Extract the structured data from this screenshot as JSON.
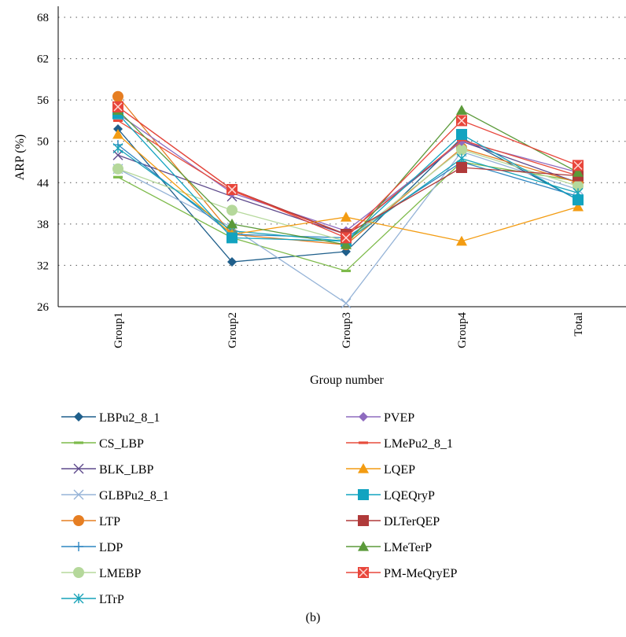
{
  "chart_data": {
    "type": "line",
    "categories": [
      "Group1",
      "Group2",
      "Group3",
      "Group4",
      "Total"
    ],
    "xlabel": "Group number",
    "ylabel": "ARP (%)",
    "ylim": [
      26,
      68
    ],
    "yticks": [
      26,
      32,
      38,
      44,
      50,
      56,
      62,
      68
    ],
    "grid": "horizontal dotted",
    "legend_position": "bottom, two columns",
    "series": [
      {
        "name": "LBPu2_8_1",
        "color": "#1f5f8b",
        "marker": "diamond",
        "values": [
          51.8,
          32.5,
          34.0,
          50.5,
          41.5
        ]
      },
      {
        "name": "CS_LBP",
        "color": "#7dba4a",
        "marker": "dash",
        "values": [
          44.8,
          36.0,
          31.2,
          47.0,
          44.2
        ]
      },
      {
        "name": "BLK_LBP",
        "color": "#5e4a8c",
        "marker": "x",
        "values": [
          48.0,
          42.0,
          36.5,
          50.0,
          44.0
        ]
      },
      {
        "name": "GLBPu2_8_1",
        "color": "#95b3d7",
        "marker": "x",
        "values": [
          46.0,
          37.5,
          26.5,
          48.5,
          43.0
        ]
      },
      {
        "name": "LTP",
        "color": "#e67e22",
        "marker": "circle",
        "values": [
          56.5,
          36.5,
          35.0,
          49.0,
          44.0
        ]
      },
      {
        "name": "LDP",
        "color": "#2e86c1",
        "marker": "plus",
        "values": [
          49.5,
          36.5,
          36.0,
          47.0,
          42.0
        ]
      },
      {
        "name": "LMEBP",
        "color": "#b5d89b",
        "marker": "circle",
        "values": [
          46.0,
          40.0,
          35.5,
          48.8,
          43.5
        ]
      },
      {
        "name": "LTrP",
        "color": "#17a2b8",
        "marker": "asterisk",
        "values": [
          49.0,
          37.0,
          35.5,
          47.5,
          42.5
        ]
      },
      {
        "name": "PVEP",
        "color": "#8e6bbf",
        "marker": "diamond",
        "values": [
          54.0,
          42.5,
          37.0,
          50.0,
          45.5
        ]
      },
      {
        "name": "LMePu2_8_1",
        "color": "#e74c3c",
        "marker": "dash",
        "values": [
          53.0,
          42.8,
          36.5,
          50.2,
          45.0
        ]
      },
      {
        "name": "LQEP",
        "color": "#f39c12",
        "marker": "triangle",
        "values": [
          51.0,
          36.5,
          39.0,
          35.5,
          40.5
        ]
      },
      {
        "name": "LQEQryP",
        "color": "#12a3c0",
        "marker": "square",
        "values": [
          54.0,
          36.0,
          35.5,
          51.0,
          41.5
        ]
      },
      {
        "name": "DLTerQEP",
        "color": "#b03a3a",
        "marker": "square",
        "values": [
          55.0,
          43.0,
          36.5,
          46.2,
          45.0
        ]
      },
      {
        "name": "LMeTerP",
        "color": "#5b9a3a",
        "marker": "triangle",
        "values": [
          54.5,
          38.0,
          35.0,
          54.5,
          45.5
        ]
      },
      {
        "name": "PM-MeQryEP",
        "color": "#e8463b",
        "marker": "xsquare",
        "values": [
          55.0,
          43.0,
          36.0,
          53.0,
          46.5
        ]
      }
    ]
  },
  "caption": "(b)"
}
